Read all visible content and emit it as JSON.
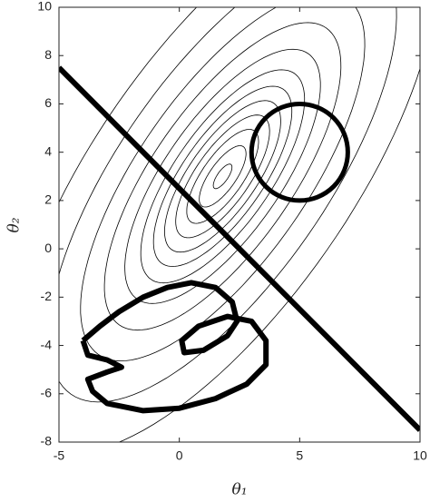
{
  "chart_data": {
    "type": "contour",
    "xlabel": "θ₁",
    "ylabel": "θ₂",
    "xlim": [
      -5,
      10
    ],
    "ylim": [
      -8,
      10
    ],
    "xticks": [
      -5,
      0,
      5,
      10
    ],
    "yticks": [
      -8,
      -6,
      -4,
      -2,
      0,
      2,
      4,
      6,
      8,
      10
    ],
    "contours": {
      "center": [
        1.8,
        3
      ],
      "angle": 55,
      "major": [
        0.6,
        1.5,
        2.3,
        3,
        3.7,
        4.4,
        5.2,
        6.2,
        7.5,
        9,
        11,
        13.5
      ],
      "minor": [
        0.22,
        0.55,
        0.85,
        1.12,
        1.4,
        1.68,
        2.0,
        2.4,
        2.9,
        3.5,
        4.3,
        5.3
      ],
      "color": "#000000"
    },
    "line": {
      "x": [
        -5,
        10
      ],
      "y": [
        7.5,
        -7.5
      ],
      "color": "#000000"
    },
    "circle": {
      "center": [
        5,
        4
      ],
      "radius": 2,
      "color": "#000000"
    },
    "region": {
      "x": [
        -4,
        -3.3,
        -2.5,
        -1.5,
        -0.5,
        0.5,
        1.5,
        2.2,
        2.4,
        2.0,
        1.0,
        0.2,
        0.1,
        0.8,
        2.0,
        3.0,
        3.6,
        3.6,
        2.8,
        1.5,
        0,
        -1.5,
        -3,
        -3.6,
        -3.8,
        -3,
        -2.4,
        -3,
        -3.8,
        -4
      ],
      "y": [
        -3.8,
        -3.2,
        -2.6,
        -2.0,
        -1.6,
        -1.4,
        -1.6,
        -2.2,
        -3.0,
        -3.6,
        -4.2,
        -4.3,
        -3.8,
        -3.2,
        -2.8,
        -3.0,
        -3.8,
        -4.8,
        -5.6,
        -6.2,
        -6.6,
        -6.7,
        -6.4,
        -5.9,
        -5.4,
        -5.1,
        -4.9,
        -4.6,
        -4.4,
        -3.8
      ],
      "color": "#000000"
    }
  }
}
